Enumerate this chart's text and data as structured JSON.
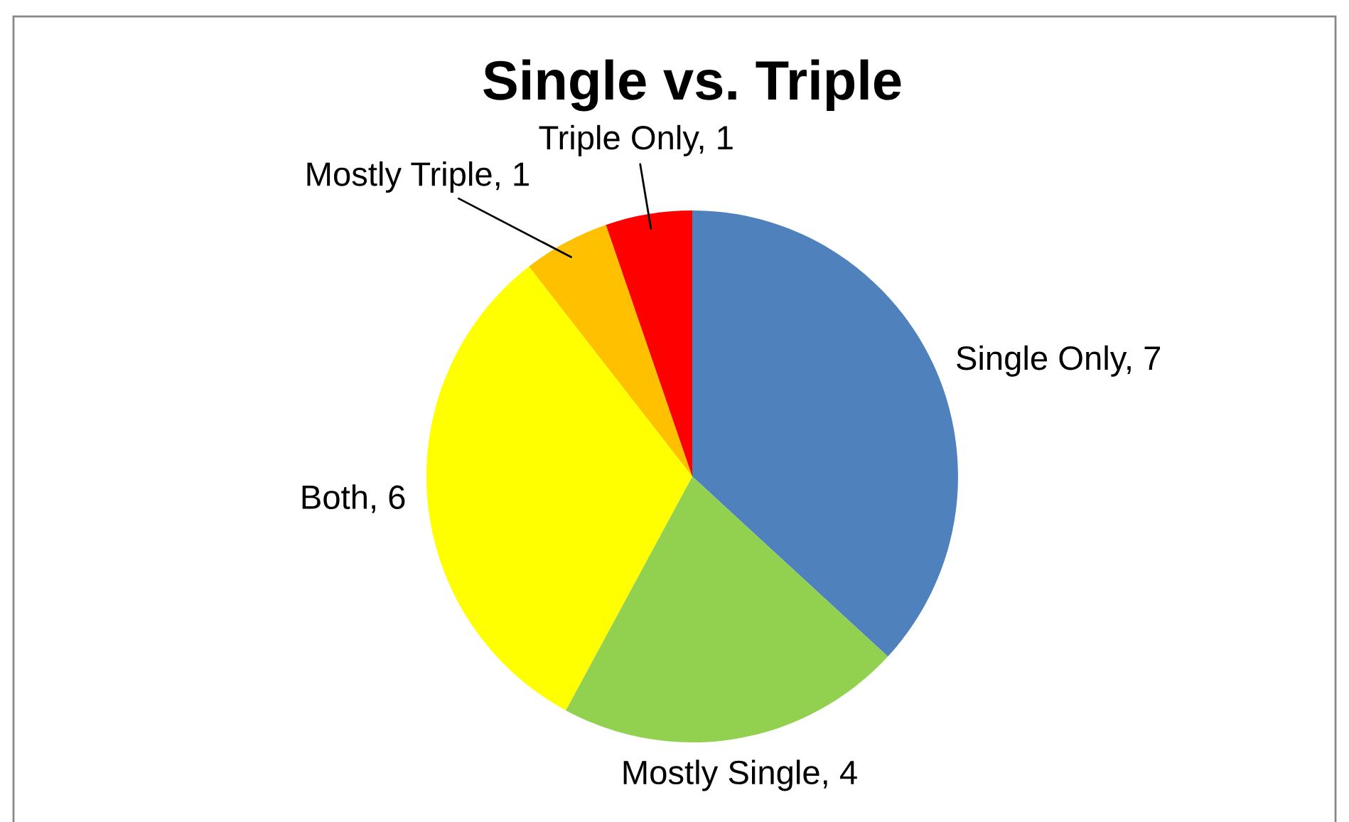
{
  "chart_data": {
    "type": "pie",
    "title": "Single vs. Triple",
    "categories": [
      "Single Only, 7",
      "Mostly Single, 4",
      "Both, 6",
      "Mostly Triple, 1",
      "Triple Only, 1"
    ],
    "values": [
      7,
      4,
      6,
      1,
      1
    ],
    "colors": [
      "#4f81bd",
      "#92d050",
      "#ffff00",
      "#ffc000",
      "#ff0000"
    ]
  }
}
